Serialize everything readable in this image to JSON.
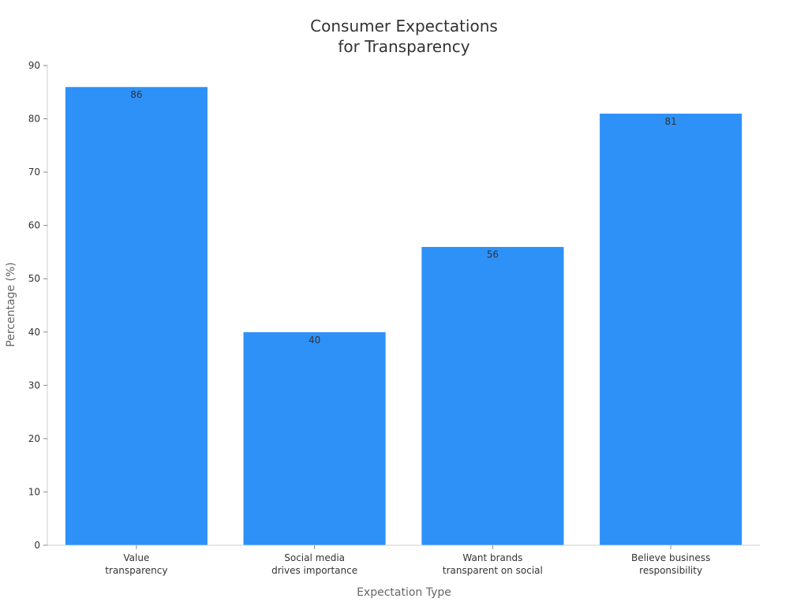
{
  "chart_data": {
    "type": "bar",
    "title_lines": [
      "Consumer Expectations",
      "for Transparency"
    ],
    "xlabel": "Expectation Type",
    "ylabel": "Percentage (%)",
    "categories": [
      [
        "Value",
        "transparency"
      ],
      [
        "Social media",
        "drives importance"
      ],
      [
        "Want brands",
        "transparent on social"
      ],
      [
        "Believe business",
        "responsibility"
      ]
    ],
    "values": [
      86,
      40,
      56,
      81
    ],
    "ylim": [
      0,
      90
    ],
    "yticks": [
      0,
      10,
      20,
      30,
      40,
      50,
      60,
      70,
      80,
      90
    ],
    "grid": false,
    "bar_color": "#2E91F8",
    "axis_color": "#CCCCCC",
    "text_color": "#333333"
  }
}
